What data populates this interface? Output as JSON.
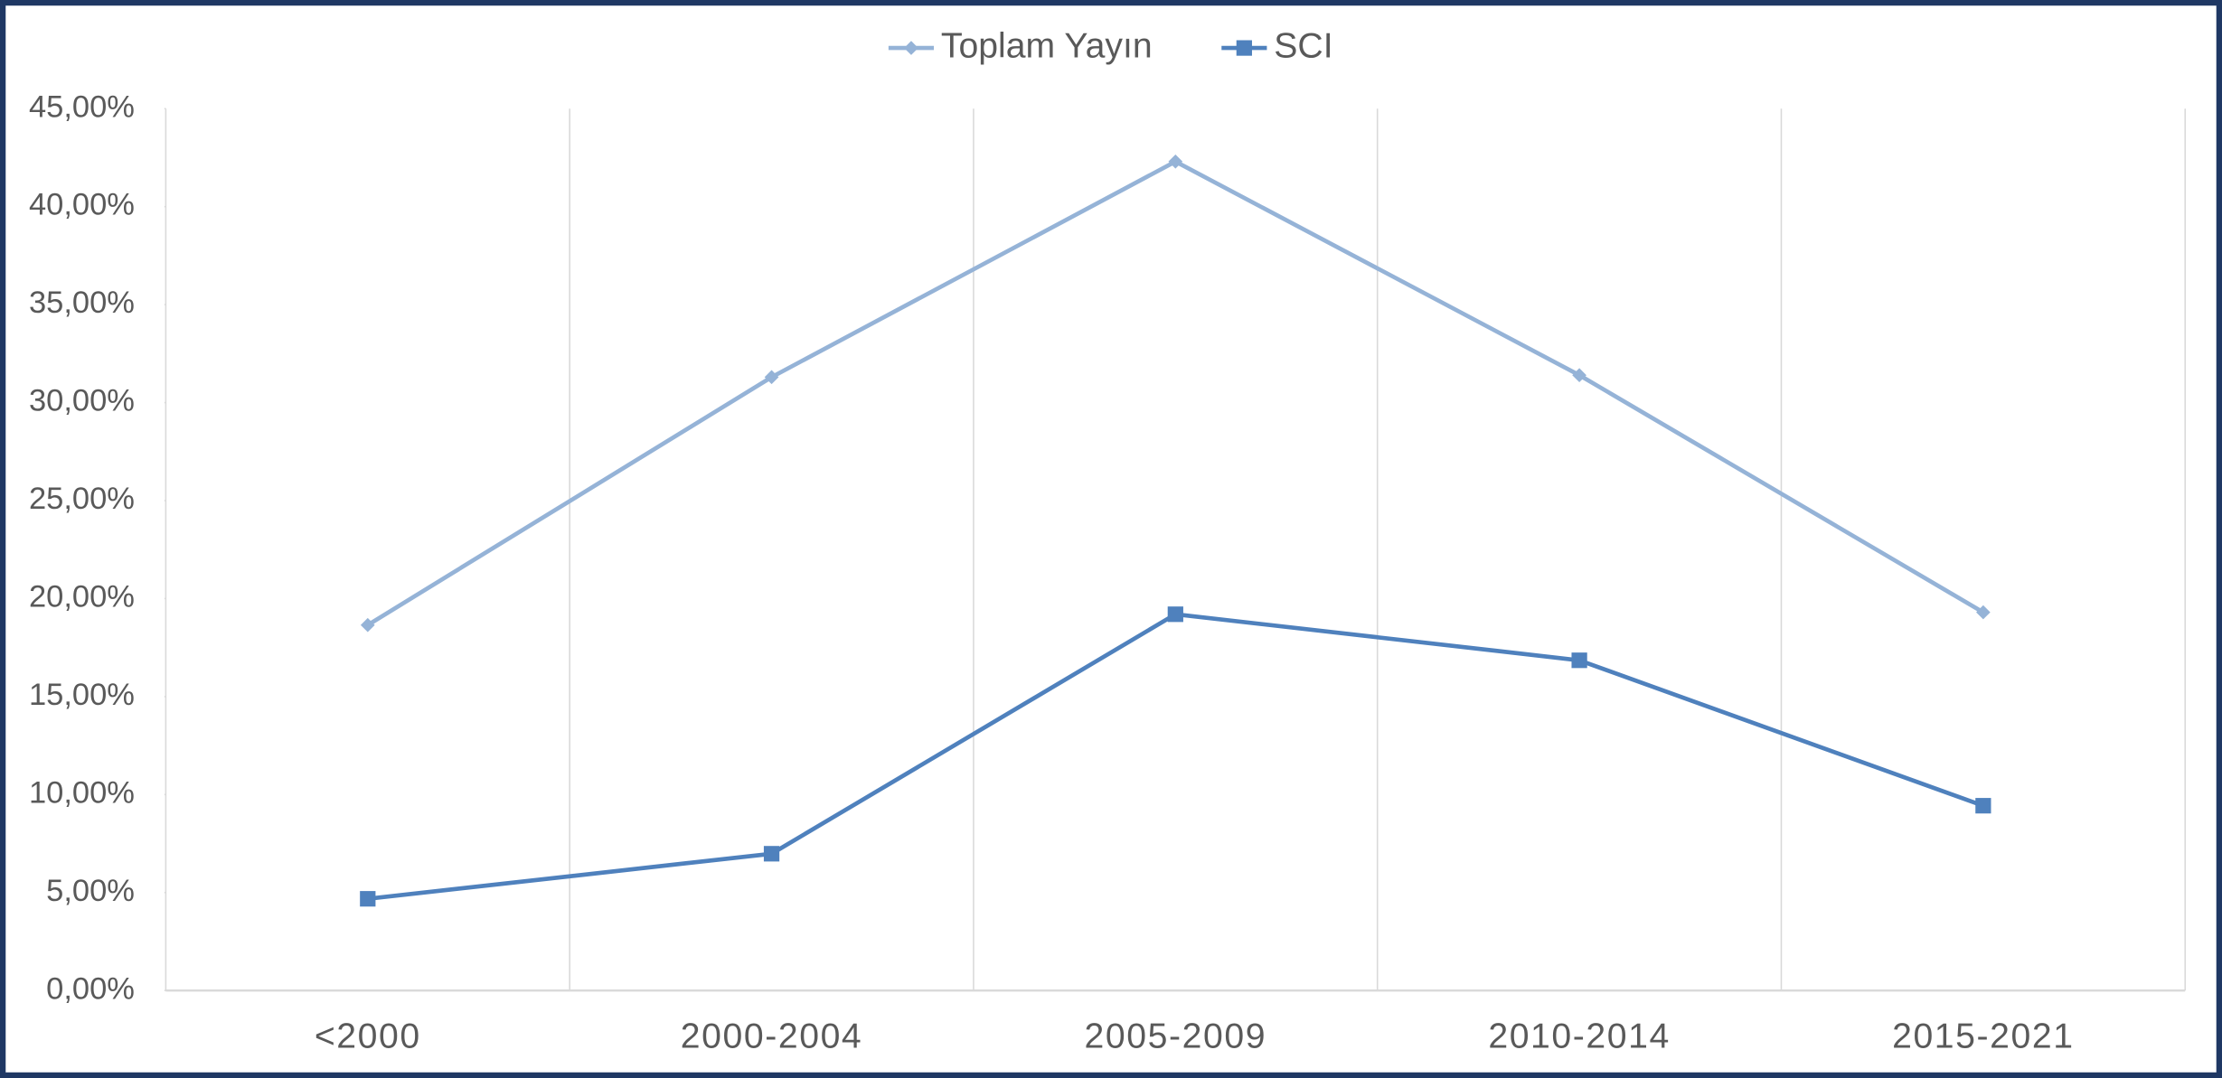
{
  "chart_data": {
    "type": "line",
    "categories": [
      "<2000",
      "2000-2004",
      "2005-2009",
      "2010-2014",
      "2015-2021"
    ],
    "series": [
      {
        "name": "Toplam Yayın",
        "color": "#95b3d7",
        "marker": "diamond",
        "values": [
          18.65,
          31.3,
          42.3,
          31.4,
          19.3
        ]
      },
      {
        "name": "SCI",
        "color": "#4f81bd",
        "marker": "square",
        "values": [
          4.68,
          6.98,
          19.2,
          16.85,
          9.43
        ]
      }
    ],
    "ylim": [
      0,
      45
    ],
    "yticks": [
      {
        "value": 0,
        "label": "0,00%"
      },
      {
        "value": 5,
        "label": "5,00%"
      },
      {
        "value": 10,
        "label": "10,00%"
      },
      {
        "value": 15,
        "label": "15,00%"
      },
      {
        "value": 20,
        "label": "20,00%"
      },
      {
        "value": 25,
        "label": "25,00%"
      },
      {
        "value": 30,
        "label": "30,00%"
      },
      {
        "value": 35,
        "label": "35,00%"
      },
      {
        "value": 40,
        "label": "40,00%"
      },
      {
        "value": 45,
        "label": "45,00%"
      }
    ],
    "legend": "top"
  }
}
